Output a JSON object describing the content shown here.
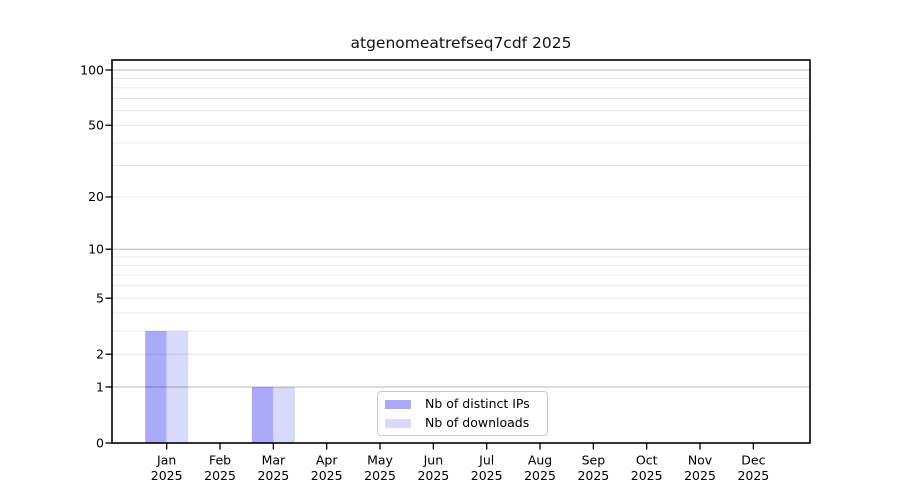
{
  "title": "atgenomeatrefseq7cdf 2025",
  "chart_data": {
    "type": "bar",
    "title": "atgenomeatrefseq7cdf 2025",
    "categories": [
      "Jan",
      "Feb",
      "Mar",
      "Apr",
      "May",
      "Jun",
      "Jul",
      "Aug",
      "Sep",
      "Oct",
      "Nov",
      "Dec"
    ],
    "category_year": "2025",
    "series": [
      {
        "name": "Nb of distinct IPs",
        "color": "#aaaaf8",
        "values": [
          3,
          0,
          1,
          0,
          0,
          0,
          0,
          0,
          0,
          0,
          0,
          0
        ]
      },
      {
        "name": "Nb of downloads",
        "color": "#d9d9f9",
        "values": [
          3,
          0,
          1,
          0,
          0,
          0,
          0,
          0,
          0,
          0,
          0,
          0
        ]
      }
    ],
    "yscale": "log1p",
    "ylim": [
      0,
      113.3
    ],
    "yticks": [
      0,
      1,
      2,
      5,
      10,
      20,
      50,
      100
    ],
    "gridlines_major": [
      1,
      10,
      100
    ],
    "gridlines_minor": [
      2,
      3,
      4,
      5,
      6,
      7,
      8,
      9,
      20,
      30,
      40,
      50,
      60,
      70,
      80,
      90
    ],
    "legend_position": "lower center",
    "grid": true,
    "xlabel": "",
    "ylabel": ""
  },
  "colors": {
    "frame": "#000000",
    "tick": "#000000",
    "text": "#000000",
    "major_grid_rgba": "rgba(0,0,0,0.27)",
    "minor_grid_rgba": "rgba(0,0,0,0.085)",
    "legend_border": "#cccccc",
    "background": "#ffffff"
  }
}
